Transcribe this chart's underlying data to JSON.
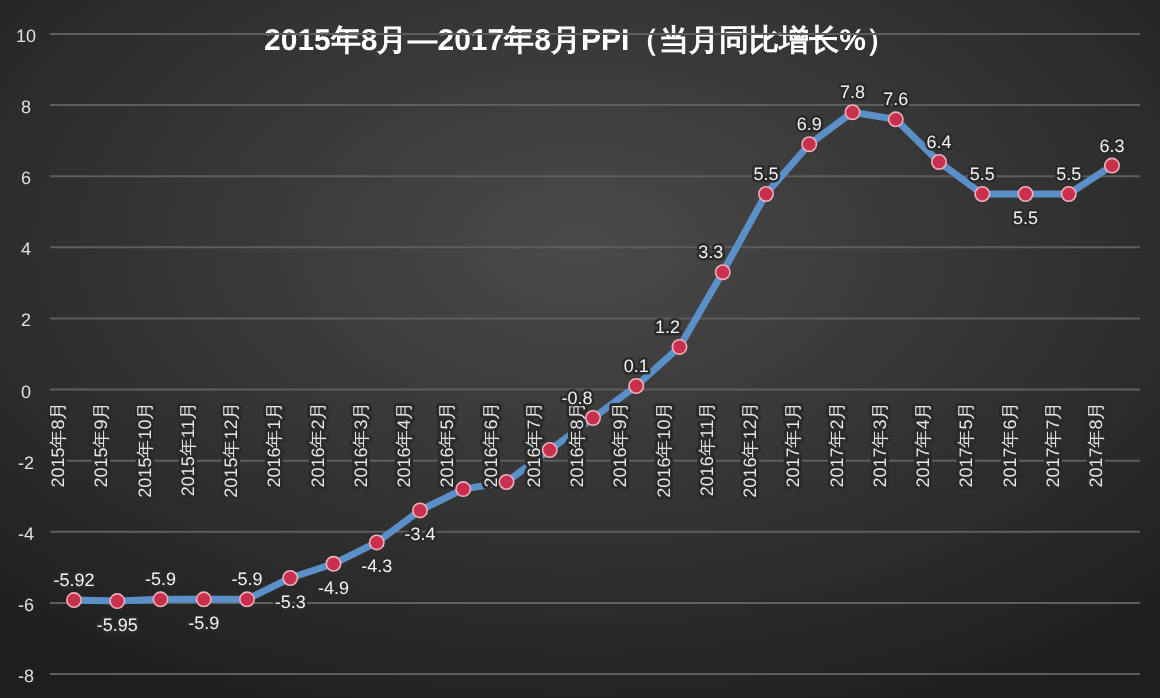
{
  "chart_data": {
    "type": "line",
    "title": "2015年8月—2017年8月PPI（当月同比增长%）",
    "categories": [
      "2015年8月",
      "2015年9月",
      "2015年10月",
      "2015年11月",
      "2015年12月",
      "2016年1月",
      "2016年2月",
      "2016年3月",
      "2016年4月",
      "2016年5月",
      "2016年6月",
      "2016年7月",
      "2016年8月",
      "2016年9月",
      "2016年10月",
      "2016年11月",
      "2016年12月",
      "2017年1月",
      "2017年2月",
      "2017年3月",
      "2017年4月",
      "2017年5月",
      "2017年6月",
      "2017年7月",
      "2017年8月"
    ],
    "series": [
      {
        "color": "#5b8fc7",
        "values": [
          -5.92,
          -5.95,
          -5.9,
          -5.9,
          -5.9,
          -5.3,
          -4.9,
          -4.3,
          -3.4,
          -2.8,
          -2.6,
          -1.7,
          -0.8,
          0.1,
          1.2,
          3.3,
          5.5,
          6.9,
          7.8,
          7.6,
          6.4,
          5.5,
          5.5,
          5.5,
          6.3
        ],
        "value_labels": [
          "-5.92",
          "-5.95",
          "-5.9",
          "-5.9",
          "-5.9",
          "-5.3",
          "-4.9",
          "-4.3",
          "-3.4",
          null,
          null,
          null,
          "-0.8",
          "0.1",
          "1.2",
          "3.3",
          "5.5",
          "6.9",
          "7.8",
          "7.6",
          "6.4",
          "5.5",
          "5.5",
          "5.5",
          "6.3"
        ]
      }
    ],
    "ylim": [
      -8,
      10
    ],
    "yticks": [
      -8,
      -6,
      -4,
      -2,
      0,
      2,
      4,
      6,
      8,
      10
    ],
    "grid": "y",
    "marker": "circle",
    "line_style": "solid"
  }
}
